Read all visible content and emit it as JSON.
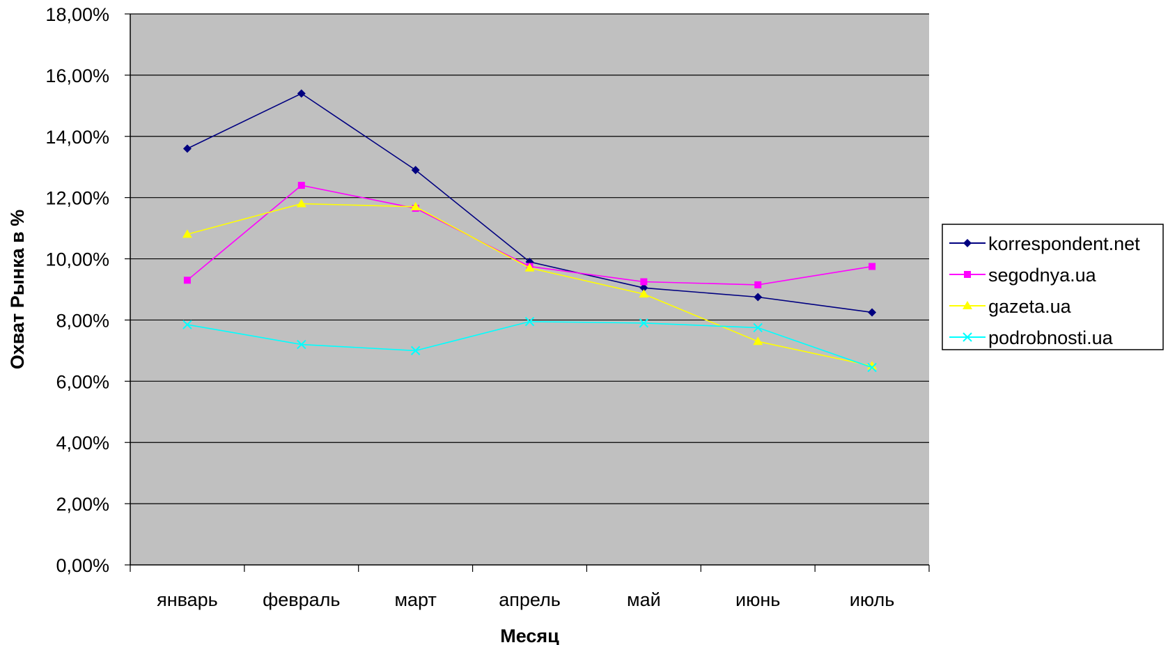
{
  "chart_data": {
    "type": "line",
    "title": "",
    "xlabel": "Месяц",
    "ylabel": "Охват Рынка в %",
    "categories": [
      "январь",
      "февраль",
      "март",
      "апрель",
      "май",
      "июнь",
      "июль"
    ],
    "ylim": [
      0,
      18
    ],
    "yticks": [
      0,
      2,
      4,
      6,
      8,
      10,
      12,
      14,
      16,
      18
    ],
    "ytick_labels": [
      "0,00%",
      "2,00%",
      "4,00%",
      "6,00%",
      "8,00%",
      "10,00%",
      "12,00%",
      "14,00%",
      "16,00%",
      "18,00%"
    ],
    "grid": true,
    "legend_position": "right",
    "plot_background": "#c0c0c0",
    "series": [
      {
        "name": "korrespondent.net",
        "color": "#000080",
        "marker": "diamond",
        "values": [
          13.6,
          15.4,
          12.9,
          9.9,
          9.05,
          8.75,
          8.25
        ]
      },
      {
        "name": "segodnya.ua",
        "color": "#ff00ff",
        "marker": "square",
        "values": [
          9.3,
          12.4,
          11.65,
          9.75,
          9.25,
          9.15,
          9.75
        ]
      },
      {
        "name": "gazeta.ua",
        "color": "#ffff00",
        "marker": "triangle",
        "values": [
          10.8,
          11.8,
          11.7,
          9.7,
          8.85,
          7.3,
          6.5
        ]
      },
      {
        "name": "podrobnosti.ua",
        "color": "#00ffff",
        "marker": "x",
        "values": [
          7.85,
          7.2,
          7.0,
          7.95,
          7.9,
          7.75,
          6.45
        ]
      }
    ]
  }
}
